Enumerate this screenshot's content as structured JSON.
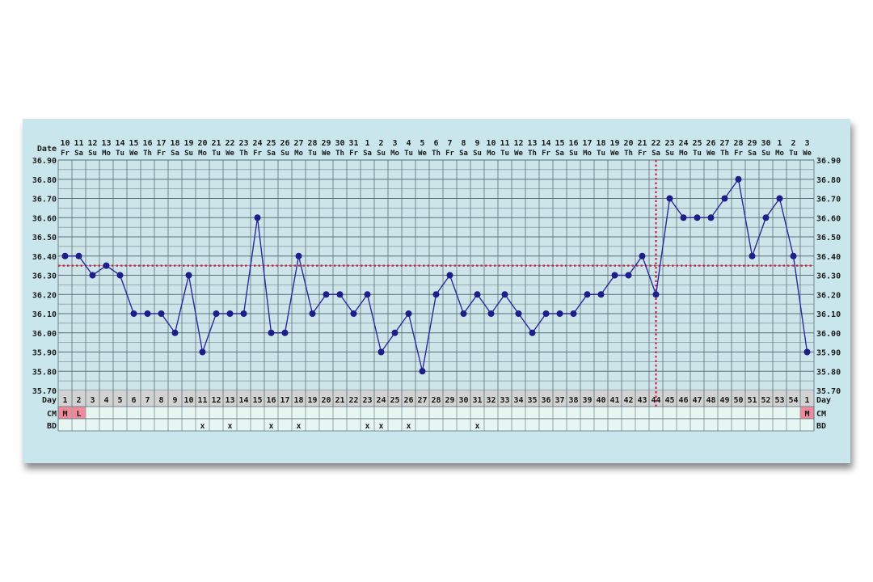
{
  "chart_data": {
    "type": "line",
    "title": "",
    "row_labels": {
      "date": "Date",
      "day": "Day",
      "cm": "CM",
      "bd": "BD"
    },
    "ylim": [
      35.7,
      36.9
    ],
    "y_ticks": [
      "36.90",
      "36.80",
      "36.70",
      "36.60",
      "36.50",
      "36.40",
      "36.30",
      "36.20",
      "36.10",
      "36.00",
      "35.90",
      "35.80",
      "35.70"
    ],
    "dates": [
      "10",
      "11",
      "12",
      "13",
      "14",
      "15",
      "16",
      "17",
      "18",
      "19",
      "20",
      "21",
      "22",
      "23",
      "24",
      "25",
      "26",
      "27",
      "28",
      "29",
      "30",
      "31",
      "1",
      "2",
      "3",
      "4",
      "5",
      "6",
      "7",
      "8",
      "9",
      "10",
      "11",
      "12",
      "13",
      "14",
      "15",
      "16",
      "17",
      "18",
      "19",
      "20",
      "21",
      "22",
      "23",
      "24",
      "25",
      "26",
      "27",
      "28",
      "29",
      "30",
      "1",
      "2",
      "3"
    ],
    "weekdays": [
      "Fr",
      "Sa",
      "Su",
      "Mo",
      "Tu",
      "We",
      "Th",
      "Fr",
      "Sa",
      "Su",
      "Mo",
      "Tu",
      "We",
      "Th",
      "Fr",
      "Sa",
      "Su",
      "Mo",
      "Tu",
      "We",
      "Th",
      "Fr",
      "Sa",
      "Su",
      "Mo",
      "Tu",
      "We",
      "Th",
      "Fr",
      "Sa",
      "Su",
      "Mo",
      "Tu",
      "We",
      "Th",
      "Fr",
      "Sa",
      "Su",
      "Mo",
      "Tu",
      "We",
      "Th",
      "Fr",
      "Sa",
      "Su",
      "Mo",
      "Tu",
      "We",
      "Th",
      "Fr",
      "Sa",
      "Su",
      "Mo",
      "Tu",
      "We"
    ],
    "days": [
      "1",
      "2",
      "3",
      "4",
      "5",
      "6",
      "7",
      "8",
      "9",
      "10",
      "11",
      "12",
      "13",
      "14",
      "15",
      "16",
      "17",
      "18",
      "19",
      "20",
      "21",
      "22",
      "23",
      "24",
      "25",
      "26",
      "27",
      "28",
      "29",
      "30",
      "31",
      "32",
      "33",
      "34",
      "35",
      "36",
      "37",
      "38",
      "39",
      "40",
      "41",
      "42",
      "43",
      "44",
      "45",
      "46",
      "47",
      "48",
      "49",
      "50",
      "51",
      "52",
      "53",
      "54",
      "1"
    ],
    "series": [
      {
        "values": [
          36.4,
          36.4,
          36.3,
          36.35,
          36.3,
          36.1,
          36.1,
          36.1,
          36.0,
          36.3,
          35.9,
          36.1,
          36.1,
          36.1,
          36.6,
          36.0,
          36.0,
          36.4,
          36.1,
          36.2,
          36.2,
          36.1,
          36.2,
          35.9,
          36.0,
          36.1,
          35.8,
          36.2,
          36.3,
          36.1,
          36.2,
          36.1,
          36.2,
          36.1,
          36.0,
          36.1,
          36.1,
          36.1,
          36.2,
          36.2,
          36.3,
          36.3,
          36.4,
          36.2,
          36.7,
          36.6,
          36.6,
          36.6,
          36.7,
          36.8,
          36.4,
          36.6,
          36.7,
          36.4,
          35.9
        ]
      }
    ],
    "coverline": 36.35,
    "ovulation_day_index": 43,
    "cm": [
      {
        "index": 0,
        "label": "M",
        "color": "#f08a9a"
      },
      {
        "index": 1,
        "label": "L",
        "color": "#f08a9a"
      },
      {
        "index": 54,
        "label": "M",
        "color": "#f08a9a"
      }
    ],
    "bd_marker": "x",
    "bd_indices": [
      10,
      12,
      15,
      17,
      22,
      23,
      25,
      30
    ],
    "colors": {
      "line": "#2b2b9e",
      "point": "#1e1e8a",
      "coverline": "#cc2244",
      "plot_bg": "#cde4e8",
      "grid": "#58707a",
      "row_bg": "#e8f6f2",
      "day_bg": "#d2d2d2"
    }
  }
}
